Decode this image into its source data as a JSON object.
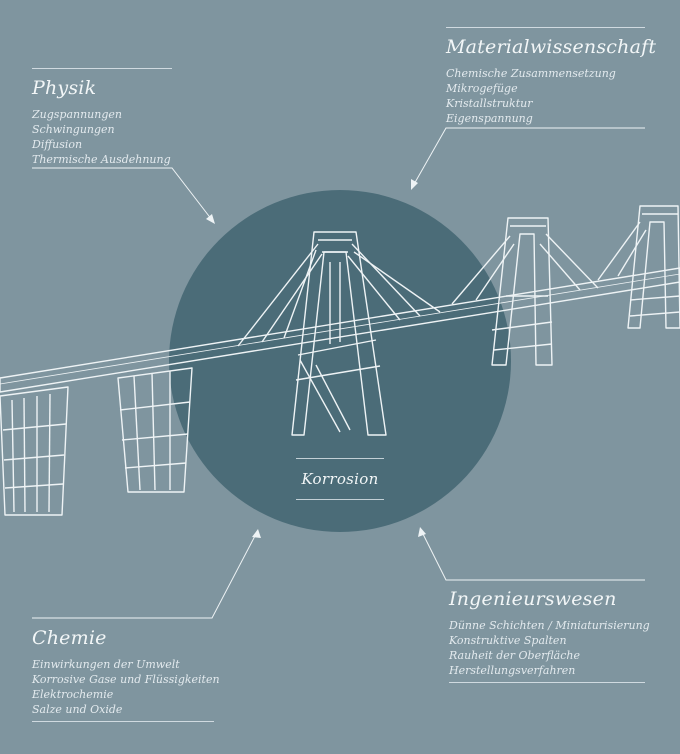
{
  "colors": {
    "background": "#7f959f",
    "circle": "#4b6c78",
    "line": "#eef3f5"
  },
  "center": {
    "label": "Korrosion"
  },
  "physik": {
    "title": "Physik",
    "items": [
      "Zugspannungen",
      "Schwingungen",
      "Diffusion",
      "Thermische Ausdehnung"
    ]
  },
  "material": {
    "title": "Materialwissenschaft",
    "items": [
      "Chemische Zusammensetzung",
      "Mikrogefüge",
      "Kristallstruktur",
      "Eigenspannung"
    ]
  },
  "chemie": {
    "title": "Chemie",
    "items": [
      "Einwirkungen der Umwelt",
      "Korrosive Gase und Flüssigkeiten",
      "Elektrochemie",
      "Salze und Oxide"
    ]
  },
  "ingenieur": {
    "title": "Ingenieurswesen",
    "items": [
      "Dünne Schichten / Miniaturisierung",
      "Konstruktive Spalten",
      "Rauheit der Oberfläche",
      "Herstellungsverfahren"
    ]
  }
}
